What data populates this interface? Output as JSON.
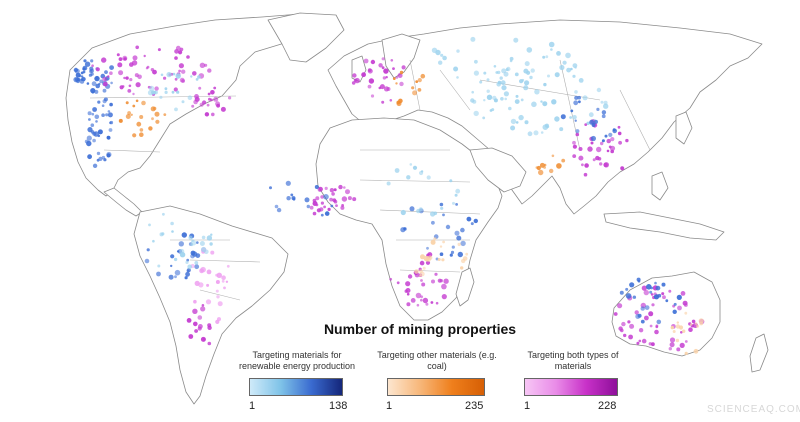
{
  "map": {
    "name": "world-mining-properties-map",
    "colors": {
      "renewable": "#3d6fd6",
      "renewable_light": "#9ed3ee",
      "other": "#ef8a2c",
      "other_light": "#fad2a8",
      "both": "#c43ad0",
      "both_light": "#ee9df0"
    }
  },
  "legend": {
    "title": "Number of mining properties",
    "groups": [
      {
        "label": "Targeting materials for renewable energy production",
        "min": "1",
        "max": "138",
        "gradient": [
          "#cfeaf9",
          "#7fc3e8",
          "#3a6bd0",
          "#14267a"
        ]
      },
      {
        "label": "Targeting other materials (e.g. coal)",
        "min": "1",
        "max": "235",
        "gradient": [
          "#fde6cf",
          "#f7b77a",
          "#ef7f1c",
          "#d65f05"
        ]
      },
      {
        "label": "Targeting both types of materials",
        "min": "1",
        "max": "228",
        "gradient": [
          "#f7c6f5",
          "#e98ce8",
          "#c831c8",
          "#8e0f9a"
        ]
      }
    ]
  },
  "watermark": "SCIENCEAQ.COM"
}
